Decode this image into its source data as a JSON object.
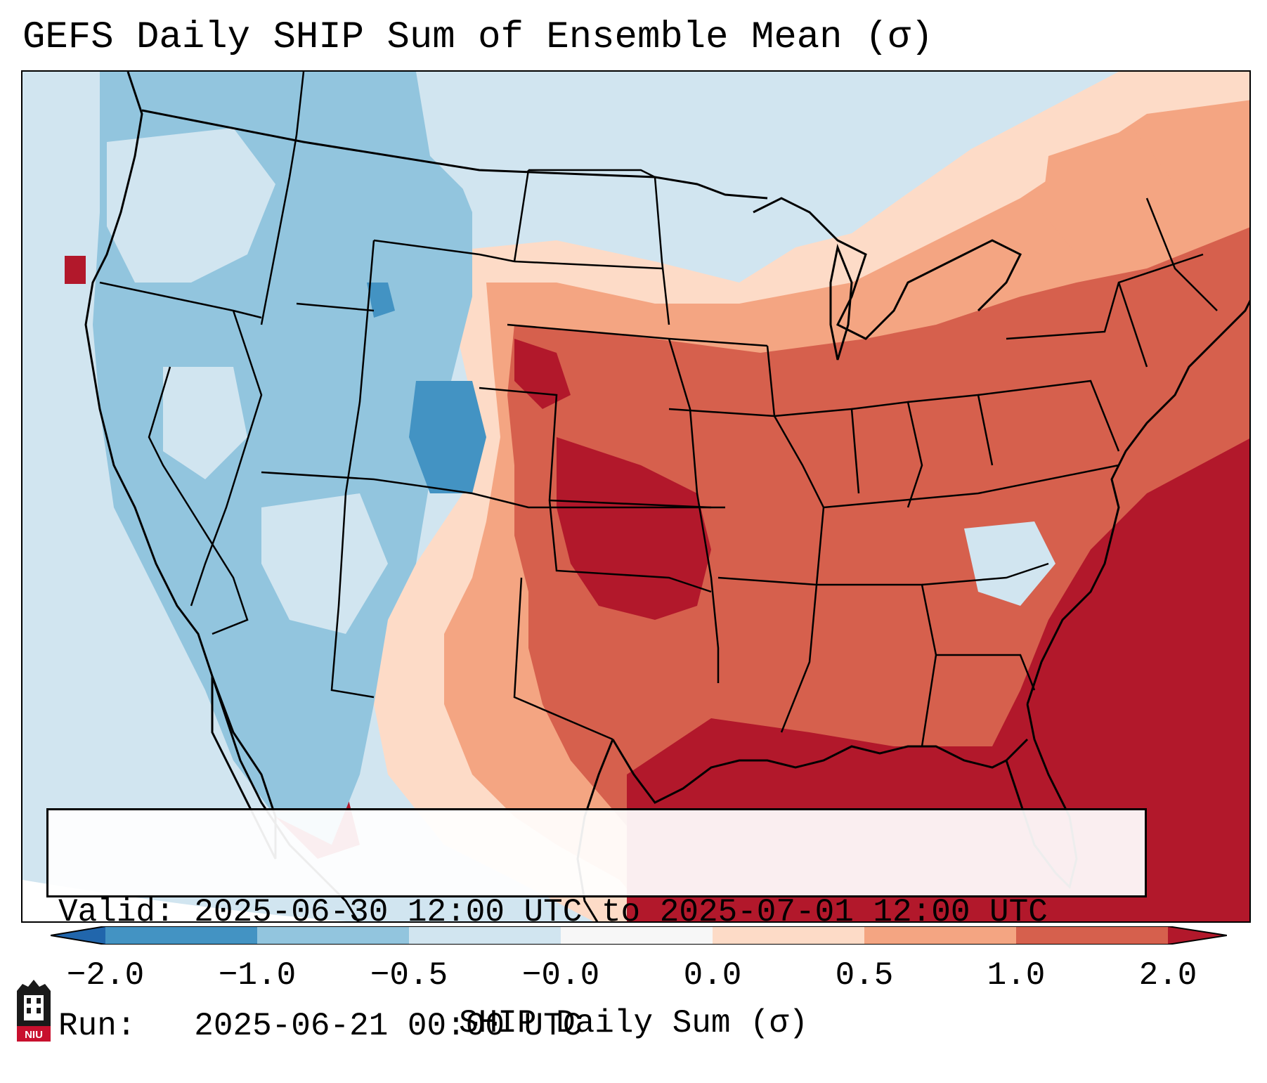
{
  "title": "GEFS Daily SHIP Sum of Ensemble Mean (σ)",
  "info_box": {
    "valid_label": "Valid:",
    "valid_value": "2025-06-30 12:00 UTC to 2025-07-01 12:00 UTC",
    "run_label": "Run:",
    "run_value": "2025-06-21 00:00 UTC"
  },
  "colorbar": {
    "label": "SHIP Daily Sum (σ)",
    "ticks": [
      "−2.0",
      "−1.0",
      "−0.5",
      "−0.0",
      "0.0",
      "0.5",
      "1.0",
      "2.0"
    ],
    "bin_colors": [
      "#4393c3",
      "#92c5de",
      "#d1e5f0",
      "#f7f7f7",
      "#fddbc7",
      "#f4a582",
      "#d6604d",
      "#b2182b"
    ],
    "under_color": "#2166ac",
    "over_color": "#b2182b"
  },
  "logo": {
    "text": "NIU"
  },
  "colors": {
    "ocean": "#d1e5f0",
    "coast": "#000000"
  }
}
